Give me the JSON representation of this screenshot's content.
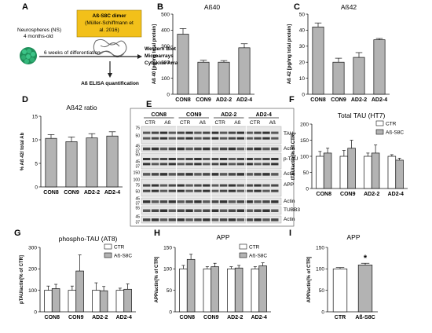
{
  "colors": {
    "grey_bar": "#b3b3b3",
    "white_bar": "#ffffff",
    "dimer_box": "#f2c01a",
    "sphere_green": "#2aa36a"
  },
  "panel_a": {
    "letter": "A",
    "ns_line1": "Neurospheres (NS)",
    "ns_line2": "4 months-old",
    "dimer_line1": "Aß-S8C dimer",
    "dimer_line2": "(Müller-Schiffmann et",
    "dimer_line3": "al. 2016)",
    "diff_label": "6 weeks of differentiation",
    "out1": "Western Blot",
    "out2": "Microarrays",
    "out3": "Cytokine Array",
    "elisa": "Aß ELISA quantification"
  },
  "panel_e": {
    "letter": "E",
    "groups": [
      "CON8",
      "CON9",
      "AD2-2",
      "AD2-4"
    ],
    "sub": [
      "CTR",
      "Aß"
    ],
    "markers": [
      "TAU",
      "Actin",
      "p-TAU",
      "Actin",
      "APP",
      "Actin",
      "TUBB3",
      "Actin"
    ],
    "mw": [
      "75",
      "50",
      "45",
      "37",
      "50",
      "45",
      "37",
      "150",
      "100",
      "75",
      "50",
      "45",
      "37",
      "55",
      "45",
      "37"
    ]
  },
  "chart_data": [
    {
      "id": "B",
      "letter": "B",
      "type": "bar",
      "title": "Aß40",
      "ylabel": "Aß 40 [pg/mg total protein]",
      "ylim": [
        0,
        500
      ],
      "yticks": [
        "0",
        "100",
        "200",
        "300",
        "400",
        "500"
      ],
      "categories": [
        "CON8",
        "CON9",
        "AD2-2",
        "AD2-4"
      ],
      "values": [
        375,
        200,
        200,
        290
      ],
      "errors": [
        35,
        12,
        10,
        25
      ]
    },
    {
      "id": "C",
      "letter": "C",
      "type": "bar",
      "title": "Aß42",
      "ylabel": "Aß 42 [pg/mg total protein]",
      "ylim": [
        0,
        50
      ],
      "yticks": [
        "0",
        "10",
        "20",
        "30",
        "40",
        "50"
      ],
      "categories": [
        "CON8",
        "CON9",
        "AD2-2",
        "AD2-4"
      ],
      "values": [
        42,
        20,
        23,
        34
      ],
      "errors": [
        2.5,
        2.5,
        3,
        0.8
      ]
    },
    {
      "id": "D",
      "letter": "D",
      "type": "bar",
      "title": "Aß42 ratio",
      "ylabel": "% Aß 42/ total Ab",
      "ylim": [
        0,
        15
      ],
      "yticks": [
        "0",
        "5",
        "10",
        "15"
      ],
      "categories": [
        "CON8",
        "CON9",
        "AD2-2",
        "AD2-4"
      ],
      "values": [
        10.3,
        9.6,
        10.4,
        10.8
      ],
      "errors": [
        0.8,
        1.0,
        0.9,
        0.9
      ]
    },
    {
      "id": "F",
      "letter": "F",
      "type": "bar",
      "title": "Total TAU (HT7)",
      "ylabel": "tTAU/actin[% of CTR]",
      "ylim": [
        0,
        200
      ],
      "yticks": [
        "0",
        "50",
        "100",
        "150",
        "200"
      ],
      "categories": [
        "CON8",
        "CON9",
        "AD2-2",
        "AD2-4"
      ],
      "legend": [
        "CTR",
        "Aß-S8C"
      ],
      "series": [
        {
          "name": "CTR",
          "values": [
            100,
            100,
            100,
            100
          ],
          "errors": [
            15,
            18,
            10,
            5
          ]
        },
        {
          "name": "Aß-S8C",
          "values": [
            110,
            125,
            110,
            88
          ],
          "errors": [
            15,
            25,
            25,
            6
          ]
        }
      ]
    },
    {
      "id": "G",
      "letter": "G",
      "type": "bar",
      "title": "phospho-TAU (AT8)",
      "ylabel": "pTAU/actin[% of CTR]",
      "ylim": [
        0,
        300
      ],
      "yticks": [
        "0",
        "100",
        "200",
        "300"
      ],
      "categories": [
        "CON8",
        "CON9",
        "AD2-2",
        "AD2-4"
      ],
      "legend": [
        "CTR",
        "Aß-S8C"
      ],
      "series": [
        {
          "name": "CTR",
          "values": [
            100,
            100,
            100,
            100
          ],
          "errors": [
            20,
            20,
            35,
            10
          ]
        },
        {
          "name": "Aß-S8C",
          "values": [
            108,
            190,
            98,
            105
          ],
          "errors": [
            20,
            75,
            20,
            25
          ]
        }
      ]
    },
    {
      "id": "H",
      "letter": "H",
      "type": "bar",
      "title": "APP",
      "ylabel": "APP/actin[% of CTR]",
      "ylim": [
        0,
        150
      ],
      "yticks": [
        "0",
        "50",
        "100",
        "150"
      ],
      "categories": [
        "CON8",
        "CON9",
        "AD2-2",
        "AD2-4"
      ],
      "legend": [
        "CTR",
        "Aß-S8C"
      ],
      "series": [
        {
          "name": "CTR",
          "values": [
            100,
            100,
            100,
            100
          ],
          "errors": [
            8,
            5,
            5,
            5
          ]
        },
        {
          "name": "Aß-S8C",
          "values": [
            122,
            105,
            102,
            107
          ],
          "errors": [
            12,
            8,
            6,
            7
          ]
        }
      ]
    },
    {
      "id": "I",
      "letter": "I",
      "type": "bar",
      "title": "APP",
      "ylabel": "APP/actin[% of CTR]",
      "ylim": [
        0,
        150
      ],
      "yticks": [
        "0",
        "50",
        "100",
        "150"
      ],
      "categories": [
        "CTR",
        "Aß-S8C"
      ],
      "values": [
        100,
        109
      ],
      "errors": [
        3,
        4
      ],
      "annotation": "*"
    }
  ]
}
